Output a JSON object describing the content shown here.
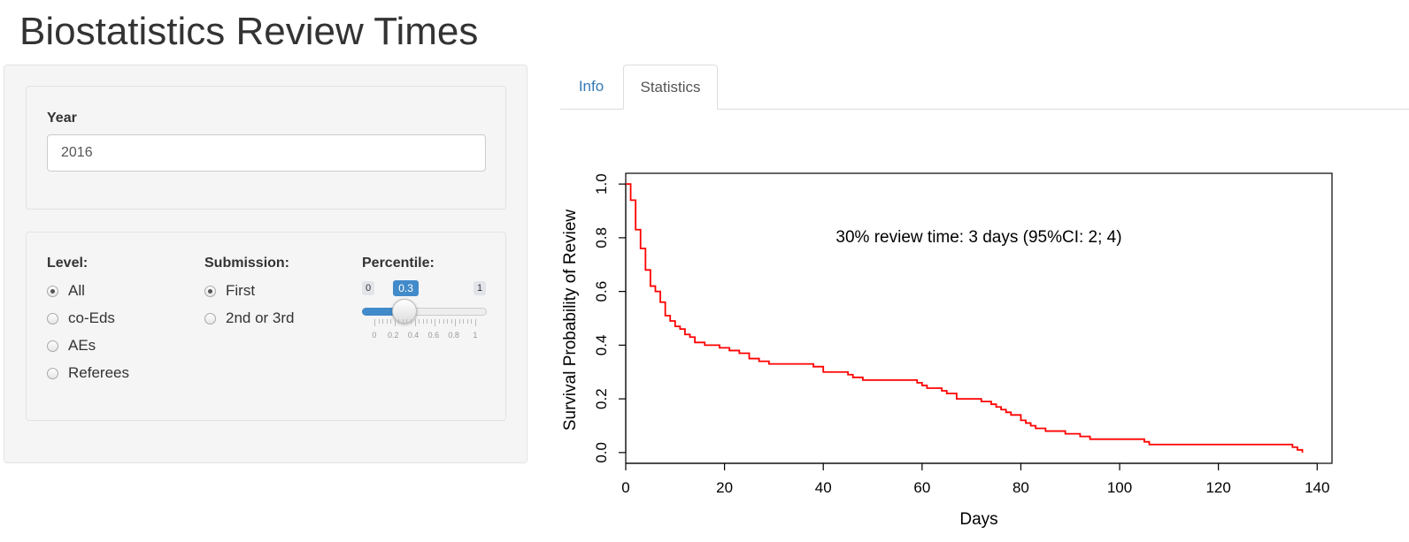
{
  "page": {
    "title": "Biostatistics Review Times"
  },
  "sidebar": {
    "year": {
      "label": "Year",
      "value": "2016"
    },
    "level": {
      "label": "Level:",
      "options": [
        "All",
        "co-Eds",
        "AEs",
        "Referees"
      ],
      "selected": "All"
    },
    "submission": {
      "label": "Submission:",
      "options": [
        "First",
        "2nd or 3rd"
      ],
      "selected": "First"
    },
    "percentile": {
      "label": "Percentile:",
      "min": "0",
      "max": "1",
      "value": "0.3",
      "value_fraction": 0.3,
      "tick_labels": [
        "0",
        "0.2",
        "0.4",
        "0.6",
        "0.8",
        "1"
      ]
    }
  },
  "tabs": [
    {
      "label": "Info",
      "active": false
    },
    {
      "label": "Statistics",
      "active": true
    }
  ],
  "colors": {
    "accent": "#428bca",
    "link": "#337ab7",
    "curve": "#ff0000"
  },
  "chart_data": {
    "type": "line",
    "title": "",
    "xlabel": "Days",
    "ylabel": "Survival Probability of Review",
    "xlim": [
      0,
      143
    ],
    "ylim": [
      -0.04,
      1.04
    ],
    "xticks": [
      "0",
      "20",
      "40",
      "60",
      "80",
      "100",
      "120",
      "140"
    ],
    "xtick_values": [
      0,
      20,
      40,
      60,
      80,
      100,
      120,
      140
    ],
    "yticks": [
      "0.0",
      "0.2",
      "0.4",
      "0.6",
      "0.8",
      "1.0"
    ],
    "ytick_values": [
      0,
      0.2,
      0.4,
      0.6,
      0.8,
      1.0
    ],
    "annotation": "30% review time: 3 days (95%CI: 2; 4)",
    "grid": false,
    "series": [
      {
        "step": true,
        "color": "#ff0000",
        "x": [
          0,
          1,
          2,
          3,
          4,
          5,
          6,
          7,
          8,
          9,
          10,
          11,
          12,
          13,
          14,
          16,
          19,
          21,
          23,
          25,
          27,
          29,
          34,
          38,
          40,
          45,
          46,
          48,
          50,
          59,
          60,
          61,
          62,
          64,
          65,
          67,
          72,
          74,
          75,
          76,
          77,
          78,
          80,
          81,
          82,
          83,
          85,
          89,
          92,
          94,
          105,
          106,
          119,
          135,
          136,
          137
        ],
        "y": [
          1.0,
          0.94,
          0.83,
          0.76,
          0.68,
          0.62,
          0.6,
          0.56,
          0.51,
          0.49,
          0.47,
          0.46,
          0.44,
          0.43,
          0.41,
          0.4,
          0.39,
          0.38,
          0.37,
          0.35,
          0.34,
          0.33,
          0.33,
          0.32,
          0.3,
          0.29,
          0.28,
          0.27,
          0.27,
          0.26,
          0.25,
          0.24,
          0.24,
          0.23,
          0.22,
          0.2,
          0.19,
          0.18,
          0.17,
          0.16,
          0.15,
          0.14,
          0.12,
          0.11,
          0.1,
          0.09,
          0.08,
          0.07,
          0.06,
          0.05,
          0.04,
          0.03,
          0.03,
          0.02,
          0.01,
          0.0
        ]
      }
    ]
  }
}
